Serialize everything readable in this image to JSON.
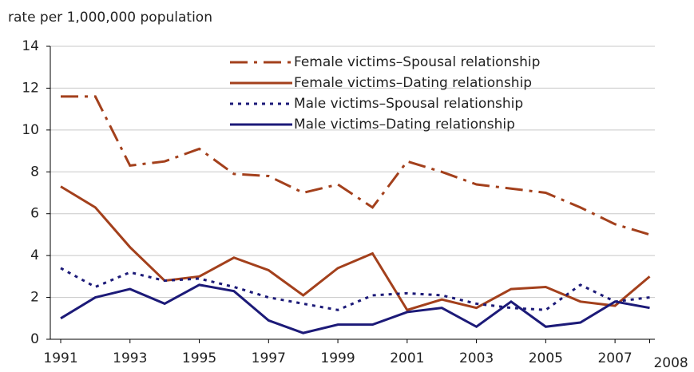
{
  "chart_data": {
    "type": "line",
    "y_axis_label": "rate per 1,000,000 population",
    "x": [
      1991,
      1992,
      1993,
      1994,
      1995,
      1996,
      1997,
      1998,
      1999,
      2000,
      2001,
      2002,
      2003,
      2004,
      2005,
      2006,
      2007,
      2008
    ],
    "series": [
      {
        "name": "Female victims–Spousal relationship",
        "color": "#a3401c",
        "style": "dashdot",
        "values": [
          11.6,
          11.6,
          8.3,
          8.5,
          9.1,
          7.9,
          7.8,
          7.0,
          7.4,
          6.3,
          8.5,
          8.0,
          7.4,
          7.2,
          7.0,
          6.3,
          5.5,
          5.0
        ]
      },
      {
        "name": "Female victims–Dating relationship",
        "color": "#a3401c",
        "style": "solid",
        "values": [
          7.3,
          6.3,
          4.4,
          2.8,
          3.0,
          3.9,
          3.3,
          2.1,
          3.4,
          4.1,
          1.4,
          1.9,
          1.5,
          2.4,
          2.5,
          1.8,
          1.6,
          3.0
        ]
      },
      {
        "name": "Male victims–Spousal relationship",
        "color": "#1c1a78",
        "style": "dotted",
        "values": [
          3.4,
          2.5,
          3.2,
          2.8,
          2.9,
          2.5,
          2.0,
          1.7,
          1.4,
          2.1,
          2.2,
          2.1,
          1.7,
          1.5,
          1.4,
          2.6,
          1.8,
          2.0
        ]
      },
      {
        "name": "Male victims–Dating relationship",
        "color": "#1c1a78",
        "style": "solid",
        "values": [
          1.0,
          2.0,
          2.4,
          1.7,
          2.6,
          2.3,
          0.9,
          0.3,
          0.7,
          0.7,
          1.3,
          1.5,
          0.6,
          1.8,
          0.6,
          0.8,
          1.8,
          1.5
        ]
      }
    ],
    "xlim": [
      1990.7,
      2008.15
    ],
    "xticks": [
      1991,
      1993,
      1995,
      1997,
      1999,
      2001,
      2003,
      2005,
      2007,
      2008
    ],
    "ylim": [
      0,
      14
    ],
    "yticks": [
      0,
      2,
      4,
      6,
      8,
      10,
      12,
      14
    ],
    "grid": true,
    "legend": "top-right"
  }
}
